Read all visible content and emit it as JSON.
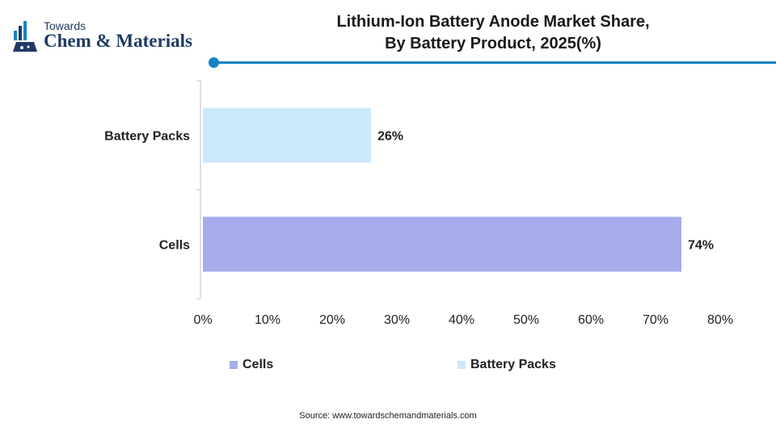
{
  "logo": {
    "line1": "Towards",
    "line2": "Chem & Materials"
  },
  "title": {
    "line1": "Lithium-Ion Battery Anode Market Share,",
    "line2": "By Battery Product, 2025(%)"
  },
  "colors": {
    "accent": "#1583c4",
    "cells": "#a6acec",
    "battery_packs": "#cce9fb",
    "brand": "#1f3a63"
  },
  "chart_data": {
    "type": "bar",
    "orientation": "horizontal",
    "categories": [
      "Battery Packs",
      "Cells"
    ],
    "values": [
      26,
      74
    ],
    "data_labels": [
      "26%",
      "74%"
    ],
    "xlim": [
      0,
      80
    ],
    "xticks": [
      0,
      10,
      20,
      30,
      40,
      50,
      60,
      70,
      80
    ],
    "xtick_labels": [
      "0%",
      "10%",
      "20%",
      "30%",
      "40%",
      "50%",
      "60%",
      "70%",
      "80%"
    ],
    "grid": false,
    "legend_position": "bottom",
    "legend": [
      {
        "label": "Cells",
        "color": "#a6acec"
      },
      {
        "label": "Battery Packs",
        "color": "#cce9fb"
      }
    ]
  },
  "source": "Source: www.towardschemandmaterials.com"
}
